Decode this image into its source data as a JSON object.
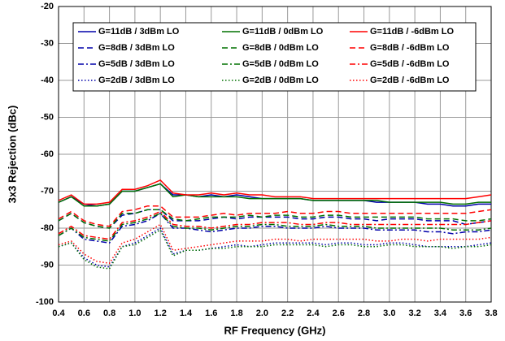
{
  "chart_data": {
    "type": "line",
    "xlabel": "RF Frequency (GHz)",
    "ylabel": "3x3 Rejection (dBc)",
    "xlim": [
      0.4,
      3.8
    ],
    "ylim": [
      -100,
      -20
    ],
    "xticks": [
      0.4,
      0.6,
      0.8,
      {
        "value": 1,
        "label": "1.0"
      },
      1.2,
      1.4,
      1.6,
      1.8,
      {
        "value": 2,
        "label": "2.0"
      },
      2.2,
      2.4,
      2.6,
      2.8,
      {
        "value": 3,
        "label": "3.0"
      },
      3.2,
      3.4,
      3.6,
      3.8
    ],
    "yticks": [
      -20,
      -30,
      -40,
      -50,
      -60,
      -70,
      -80,
      -90,
      -100
    ],
    "grid": true,
    "legend": "top",
    "x": [
      0.4,
      0.5,
      0.6,
      0.7,
      0.8,
      0.9,
      1.0,
      1.1,
      1.2,
      1.3,
      1.4,
      1.5,
      1.6,
      1.7,
      1.8,
      1.9,
      2.0,
      2.1,
      2.2,
      2.3,
      2.4,
      2.5,
      2.6,
      2.7,
      2.8,
      2.9,
      3.0,
      3.1,
      3.2,
      3.3,
      3.4,
      3.5,
      3.6,
      3.7,
      3.8
    ],
    "series": [
      {
        "name": "G=11dB / 3dBm LO",
        "color": "#0000aa",
        "dash": "solid",
        "values": [
          -73,
          -71.5,
          -73.5,
          -74,
          -73.5,
          -70,
          -70,
          -69,
          -68,
          -71,
          -71,
          -71.5,
          -71,
          -71.5,
          -71,
          -71.5,
          -72,
          -72,
          -72,
          -72,
          -72.5,
          -72.5,
          -72.5,
          -72.5,
          -72.5,
          -73,
          -73,
          -73,
          -73,
          -73.5,
          -73.5,
          -74,
          -74,
          -73.5,
          -73.5
        ]
      },
      {
        "name": "G=11dB / 0dBm LO",
        "color": "#007000",
        "dash": "solid",
        "values": [
          -73,
          -71.5,
          -74,
          -74,
          -73.5,
          -70,
          -70,
          -69,
          -68,
          -71.5,
          -71,
          -71.5,
          -71.5,
          -71.5,
          -71.5,
          -72,
          -72,
          -72,
          -72,
          -72,
          -72.5,
          -72.5,
          -72.5,
          -72.5,
          -72.5,
          -72.5,
          -73,
          -73,
          -73,
          -73,
          -73,
          -73.5,
          -73.5,
          -73,
          -73
        ]
      },
      {
        "name": "G=11dB / -6dBm LO",
        "color": "#ff0000",
        "dash": "solid",
        "values": [
          -72.5,
          -71,
          -73.5,
          -73.5,
          -73,
          -69.5,
          -69.5,
          -68.5,
          -67,
          -70.5,
          -71,
          -71,
          -70.5,
          -71,
          -70.5,
          -71,
          -71,
          -71.5,
          -71.5,
          -71.5,
          -72,
          -72,
          -72,
          -72,
          -72,
          -72,
          -72,
          -72,
          -72,
          -72,
          -72,
          -72,
          -72,
          -71.5,
          -71
        ]
      },
      {
        "name": "G=8dB / 3dBm LO",
        "color": "#0000aa",
        "dash": "dashed",
        "values": [
          -78,
          -76,
          -78.5,
          -79.5,
          -80,
          -76.5,
          -76,
          -75,
          -75,
          -78,
          -78,
          -78,
          -77.5,
          -77,
          -77.5,
          -77,
          -77,
          -77,
          -77,
          -77.5,
          -77.5,
          -77,
          -77,
          -77.5,
          -77.5,
          -78,
          -77.5,
          -77.5,
          -77.5,
          -78,
          -78,
          -78,
          -79,
          -78.5,
          -78
        ]
      },
      {
        "name": "G=8dB / 0dBm LO",
        "color": "#007000",
        "dash": "dashed",
        "values": [
          -78,
          -76,
          -78.5,
          -79.5,
          -80,
          -76,
          -76,
          -75,
          -75,
          -77.5,
          -78,
          -77.5,
          -77,
          -77,
          -77,
          -76.5,
          -77,
          -76.5,
          -76.5,
          -77,
          -77,
          -76.5,
          -76.5,
          -77,
          -77,
          -77,
          -77,
          -77,
          -77,
          -77.5,
          -77.5,
          -77.5,
          -78,
          -78,
          -77.5
        ]
      },
      {
        "name": "G=8dB / -6dBm LO",
        "color": "#ff0000",
        "dash": "dashed",
        "values": [
          -77.5,
          -75.5,
          -78,
          -79,
          -79.5,
          -75.5,
          -75,
          -74,
          -74,
          -77,
          -77,
          -77,
          -76.5,
          -76,
          -76.5,
          -76,
          -76,
          -76,
          -75.5,
          -76,
          -76,
          -75.5,
          -75.5,
          -76,
          -76,
          -76,
          -76,
          -76,
          -76,
          -76,
          -76,
          -76,
          -76,
          -75.5,
          -75
        ]
      },
      {
        "name": "G=5dB / 3dBm LO",
        "color": "#0000aa",
        "dash": "dashdot",
        "values": [
          -82,
          -80,
          -83,
          -83.5,
          -84,
          -79.5,
          -79,
          -78,
          -76,
          -80,
          -80,
          -80.5,
          -81,
          -80.5,
          -80,
          -80,
          -79.5,
          -79.5,
          -80,
          -80,
          -80,
          -79.5,
          -80,
          -80,
          -80,
          -80.5,
          -80.5,
          -80.5,
          -80.5,
          -81,
          -81,
          -81.5,
          -81,
          -81,
          -80.5
        ]
      },
      {
        "name": "G=5dB / 0dBm LO",
        "color": "#007000",
        "dash": "dashdot",
        "values": [
          -82,
          -80,
          -82.5,
          -83,
          -83.5,
          -79,
          -78.5,
          -77.5,
          -76,
          -79.5,
          -80,
          -80,
          -80.5,
          -80,
          -79.5,
          -79.5,
          -79,
          -79,
          -79.5,
          -79.5,
          -79.5,
          -79,
          -79.5,
          -79.5,
          -79.5,
          -80,
          -80,
          -80,
          -80,
          -80,
          -80,
          -80.5,
          -80.5,
          -80.5,
          -80
        ]
      },
      {
        "name": "G=5dB / -6dBm LO",
        "color": "#ff0000",
        "dash": "dashdot",
        "values": [
          -81.5,
          -79.5,
          -82,
          -82.5,
          -83,
          -78.5,
          -78,
          -77,
          -75.5,
          -79,
          -79.5,
          -79.5,
          -80,
          -79.5,
          -79,
          -79,
          -78.5,
          -78.5,
          -78.5,
          -79,
          -79,
          -78.5,
          -78.5,
          -79,
          -79,
          -79,
          -79,
          -79,
          -79,
          -79,
          -79,
          -79,
          -79,
          -78.5,
          -78
        ]
      },
      {
        "name": "G=2dB / 3dBm LO",
        "color": "#0000aa",
        "dash": "dotted",
        "values": [
          -85,
          -84,
          -88,
          -90,
          -90.5,
          -85,
          -84,
          -82,
          -80,
          -87,
          -86,
          -86,
          -85.5,
          -85,
          -84.5,
          -85,
          -84.5,
          -84,
          -84,
          -84,
          -84,
          -84.5,
          -84,
          -84,
          -84.5,
          -84.5,
          -84,
          -84,
          -84.5,
          -85,
          -85,
          -85,
          -85,
          -84.5,
          -84
        ]
      },
      {
        "name": "G=2dB / 0dBm LO",
        "color": "#007000",
        "dash": "dotted",
        "values": [
          -85,
          -84,
          -88.5,
          -90.5,
          -91,
          -85,
          -84.5,
          -82.5,
          -80.5,
          -87.5,
          -86,
          -86,
          -85.5,
          -85.5,
          -85,
          -85,
          -85,
          -84.5,
          -84.5,
          -84.5,
          -84.5,
          -85,
          -84.5,
          -84.5,
          -85,
          -85,
          -84.5,
          -84.5,
          -85,
          -85,
          -85,
          -85.5,
          -85,
          -85,
          -84.5
        ]
      },
      {
        "name": "G=2dB / -6dBm LO",
        "color": "#ff0000",
        "dash": "dotted",
        "values": [
          -84.5,
          -83.5,
          -87,
          -89,
          -89.5,
          -84,
          -83,
          -81,
          -79,
          -86,
          -85.5,
          -85,
          -84.5,
          -84,
          -83.5,
          -83.5,
          -83.5,
          -83,
          -83,
          -83.5,
          -83,
          -83,
          -83,
          -83,
          -83,
          -83.5,
          -83.5,
          -83,
          -83,
          -83.5,
          -83,
          -83,
          -83,
          -83,
          -82.5
        ]
      }
    ]
  }
}
